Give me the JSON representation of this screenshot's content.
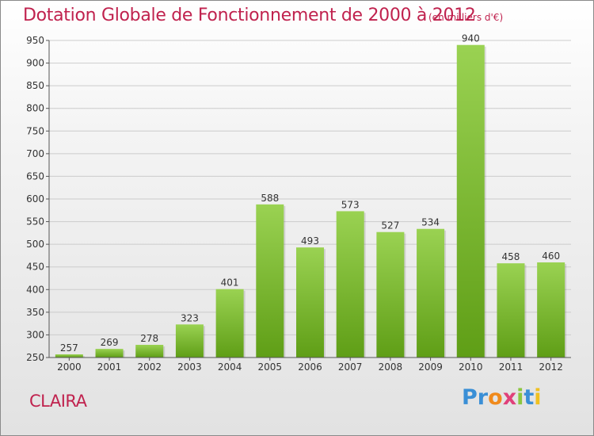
{
  "title": "Dotation Globale de Fonctionnement de 2000 à 2012",
  "subtitle": "(en milliers d'€)",
  "location": "CLAIRA",
  "logo": {
    "letters": [
      "P",
      "r",
      "o",
      "x",
      "i",
      "t",
      "i"
    ],
    "colors": [
      "#3a8fd6",
      "#3a8fd6",
      "#f08a1c",
      "#e0407a",
      "#8cc640",
      "#3a8fd6",
      "#f0c020"
    ]
  },
  "colors": {
    "bar_top": "#9ad252",
    "bar_bottom": "#5f9e16",
    "grid": "#cccccc",
    "axis": "#555555",
    "text": "#333333",
    "accent": "#c0224e"
  },
  "chart_data": {
    "type": "bar",
    "title": "Dotation Globale de Fonctionnement de 2000 à 2012",
    "subtitle": "(en milliers d'€)",
    "categories": [
      "2000",
      "2001",
      "2002",
      "2003",
      "2004",
      "2005",
      "2006",
      "2007",
      "2008",
      "2009",
      "2010",
      "2011",
      "2012"
    ],
    "values": [
      257,
      269,
      278,
      323,
      401,
      588,
      493,
      573,
      527,
      534,
      940,
      458,
      460
    ],
    "ylim": [
      250,
      950
    ],
    "yticks": [
      250,
      300,
      350,
      400,
      450,
      500,
      550,
      600,
      650,
      700,
      750,
      800,
      850,
      900,
      950
    ],
    "grid": true
  }
}
